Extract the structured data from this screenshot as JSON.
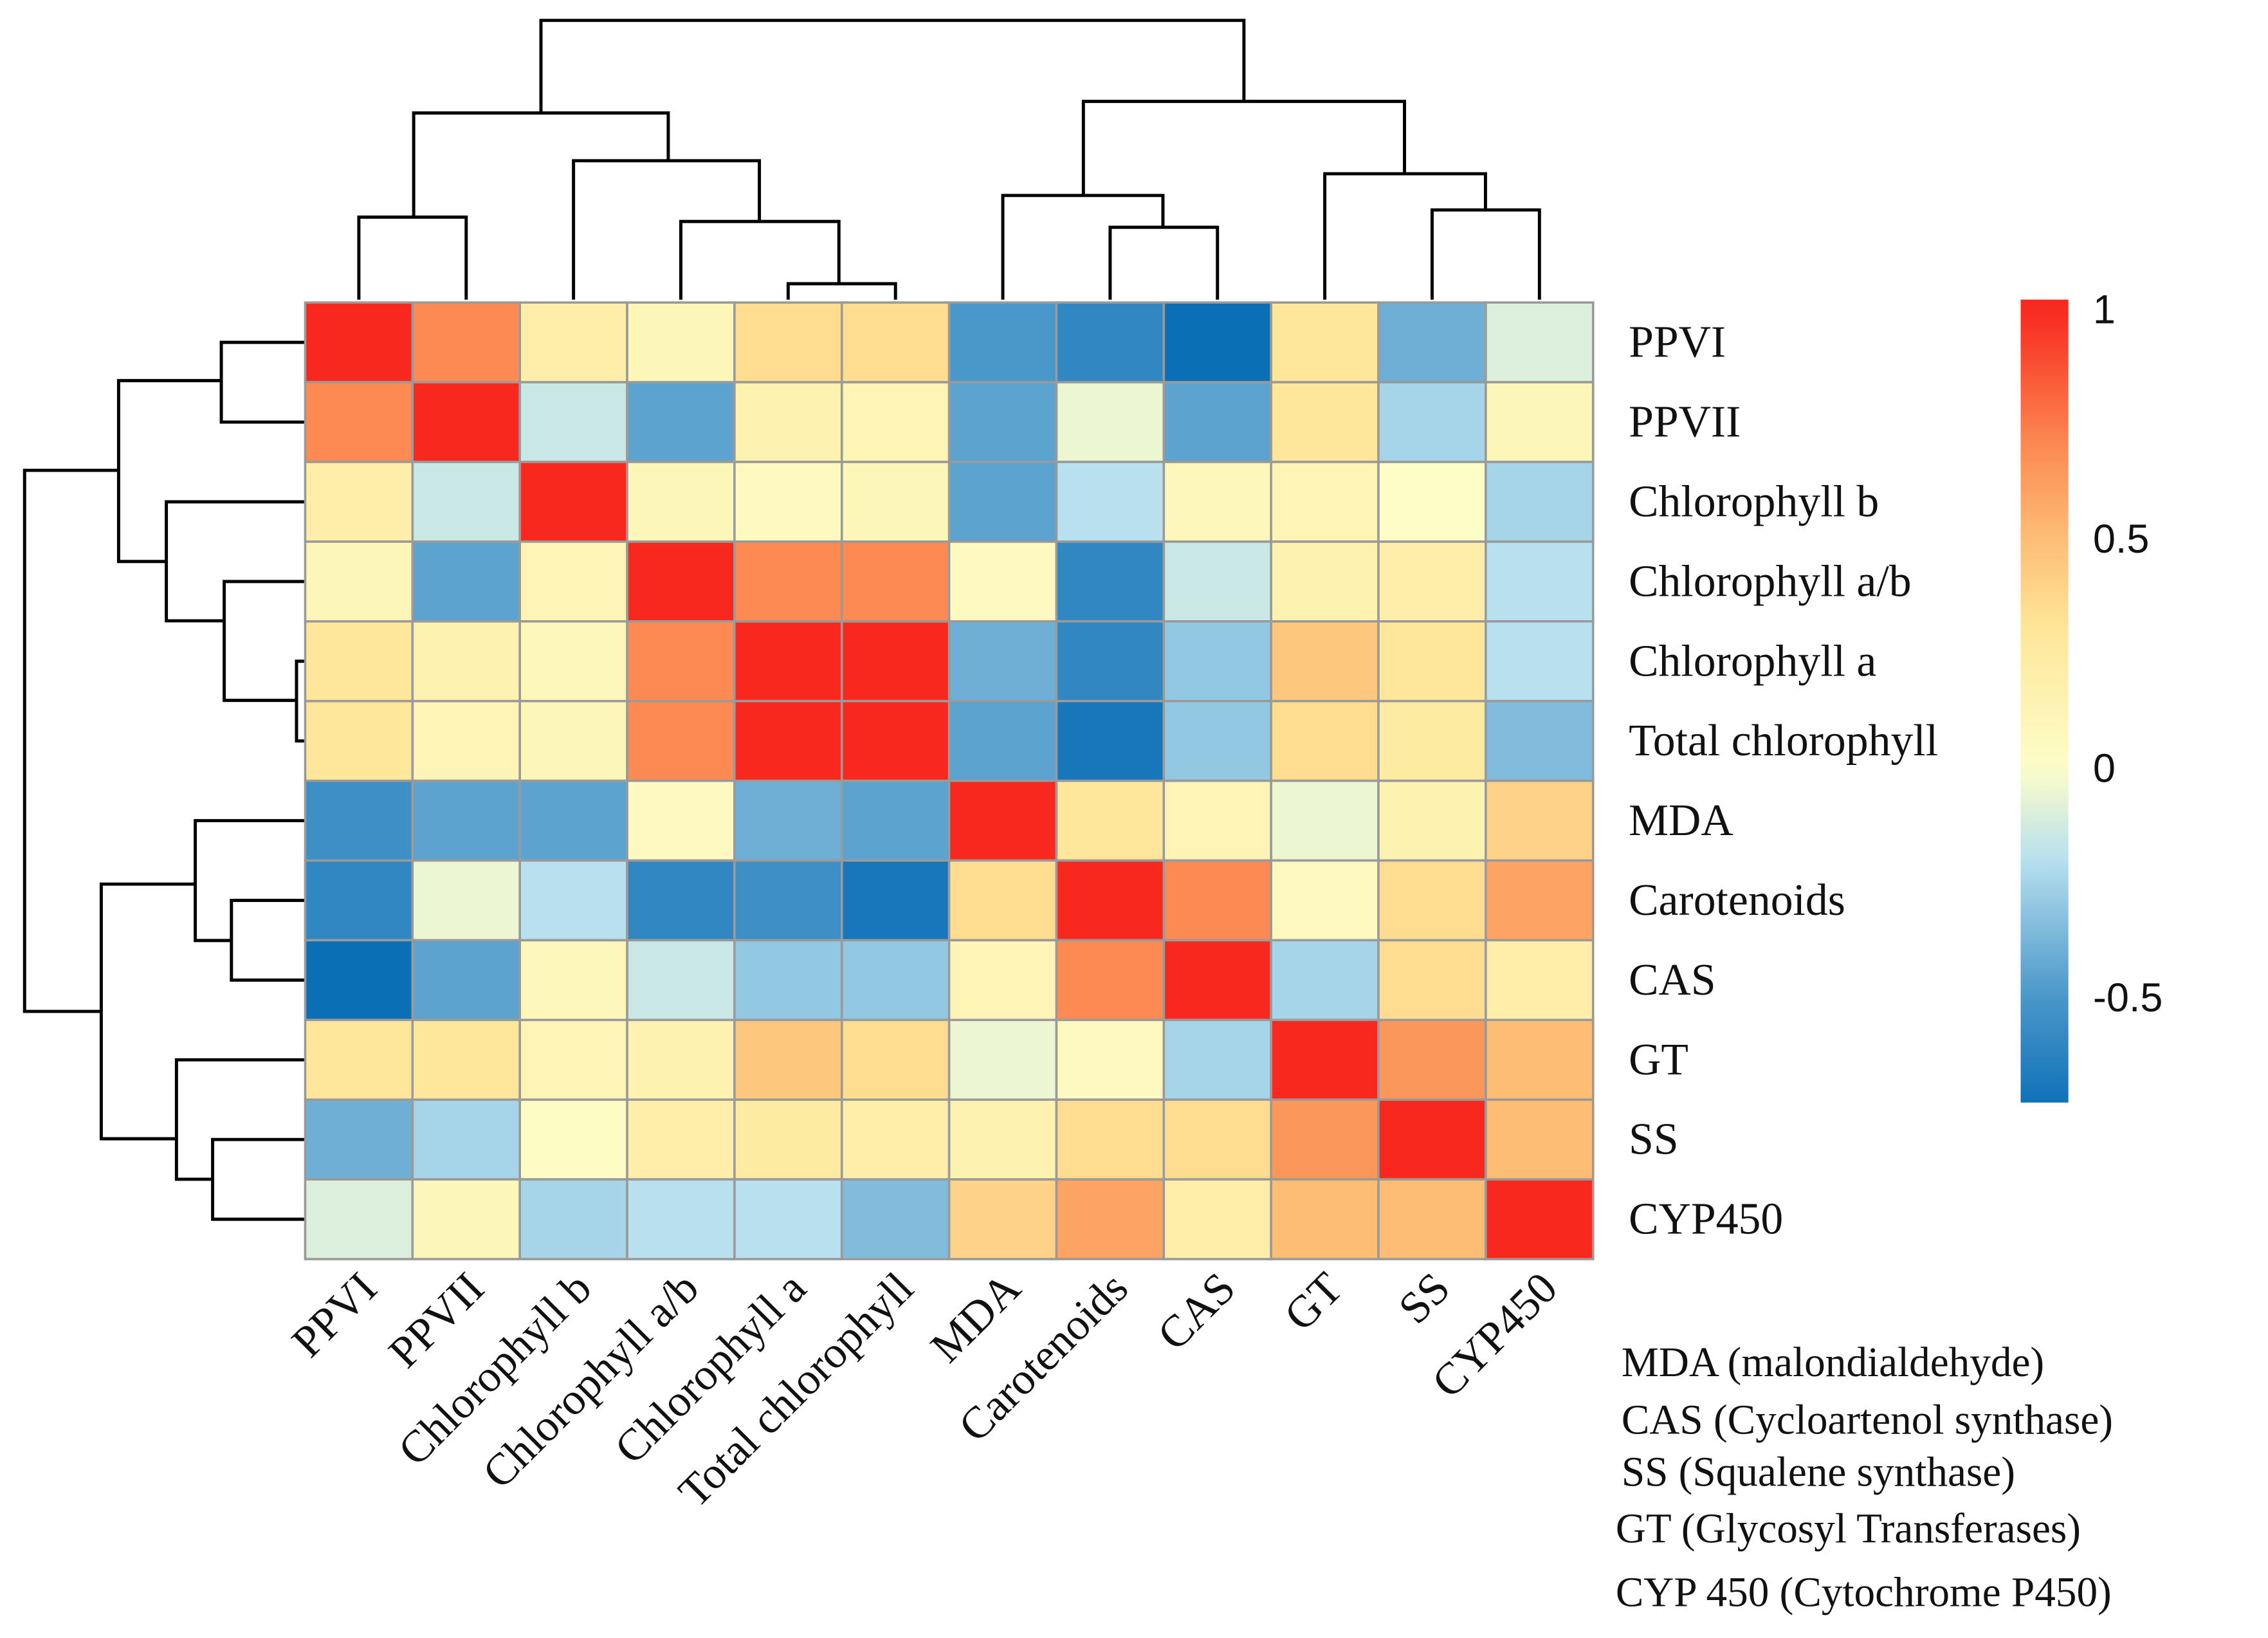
{
  "chart_data": {
    "type": "heatmap",
    "title": "",
    "rows": [
      "PPVI",
      "PPVII",
      "Chlorophyll b",
      "Chlorophyll a/b",
      "Chlorophyll a",
      "Total chlorophyll",
      "MDA",
      "Carotenoids",
      "CAS",
      "GT",
      "SS",
      "CYP450"
    ],
    "columns": [
      "PPVI",
      "PPVII",
      "Chlorophyll b",
      "Chlorophyll a/b",
      "Chlorophyll a",
      "Total chlorophyll",
      "MDA",
      "Carotenoids",
      "CAS",
      "GT",
      "SS",
      "CYP450"
    ],
    "values": [
      [
        1,
        0.7,
        0.2,
        0.1,
        0.35,
        0.35,
        -0.5,
        -0.6,
        -0.75,
        0.3,
        -0.4,
        -0.1
      ],
      [
        0.7,
        1,
        -0.15,
        -0.45,
        0.15,
        0.12,
        -0.45,
        -0.05,
        -0.45,
        0.3,
        -0.25,
        0.1
      ],
      [
        0.2,
        -0.15,
        1,
        0.1,
        0.05,
        0.1,
        -0.45,
        -0.2,
        0.08,
        0.12,
        0,
        -0.25
      ],
      [
        0.1,
        -0.45,
        0.12,
        1,
        0.7,
        0.7,
        0.05,
        -0.6,
        -0.15,
        0.15,
        0.2,
        -0.2
      ],
      [
        0.3,
        0.15,
        0.08,
        0.7,
        1,
        1,
        -0.4,
        -0.6,
        -0.3,
        0.45,
        0.3,
        -0.2
      ],
      [
        0.3,
        0.12,
        0.1,
        0.7,
        1,
        1,
        -0.45,
        -0.7,
        -0.3,
        0.35,
        0.25,
        -0.35
      ],
      [
        -0.55,
        -0.45,
        -0.45,
        0.05,
        -0.4,
        -0.45,
        1,
        0.3,
        0.12,
        -0.05,
        0.15,
        0.4
      ],
      [
        -0.6,
        -0.05,
        -0.2,
        -0.6,
        -0.55,
        -0.7,
        0.35,
        1,
        0.7,
        0.05,
        0.35,
        0.6
      ],
      [
        -0.75,
        -0.45,
        0.08,
        -0.15,
        -0.3,
        -0.3,
        0.12,
        0.7,
        1,
        -0.25,
        0.35,
        0.2
      ],
      [
        0.3,
        0.3,
        0.12,
        0.15,
        0.45,
        0.35,
        -0.05,
        0.05,
        -0.25,
        1,
        0.65,
        0.5
      ],
      [
        -0.4,
        -0.25,
        0.02,
        0.2,
        0.25,
        0.2,
        0.15,
        0.35,
        0.35,
        0.65,
        1,
        0.5
      ],
      [
        -0.1,
        0.1,
        -0.25,
        -0.2,
        -0.2,
        -0.35,
        0.4,
        0.6,
        0.2,
        0.5,
        0.5,
        1
      ]
    ],
    "colorbar": {
      "range": [
        -0.73,
        1.02
      ],
      "ticks": [
        1,
        0.5,
        0,
        -0.5
      ],
      "tick_labels": [
        "1",
        "0.5",
        "0",
        "-0.5"
      ]
    },
    "color_stops": [
      {
        "v": -0.75,
        "c": "#0b6fb6"
      },
      {
        "v": -0.5,
        "c": "#4a97c9"
      },
      {
        "v": -0.2,
        "c": "#b8e0ef"
      },
      {
        "v": 0,
        "c": "#fdfdc8"
      },
      {
        "v": 0.3,
        "c": "#fee79a"
      },
      {
        "v": 0.5,
        "c": "#fdbd75"
      },
      {
        "v": 0.7,
        "c": "#fc8a52"
      },
      {
        "v": 1,
        "c": "#f8281f"
      }
    ],
    "dendrogram": "hierarchical clustering on rows and columns",
    "notes": [
      "MDA (malondialdehyde)",
      "CAS (Cycloartenol synthase)",
      "SS (Squalene synthase)",
      "GT (Glycosyl Transferases)",
      "CYP 450 (Cytochrome P450)"
    ]
  }
}
